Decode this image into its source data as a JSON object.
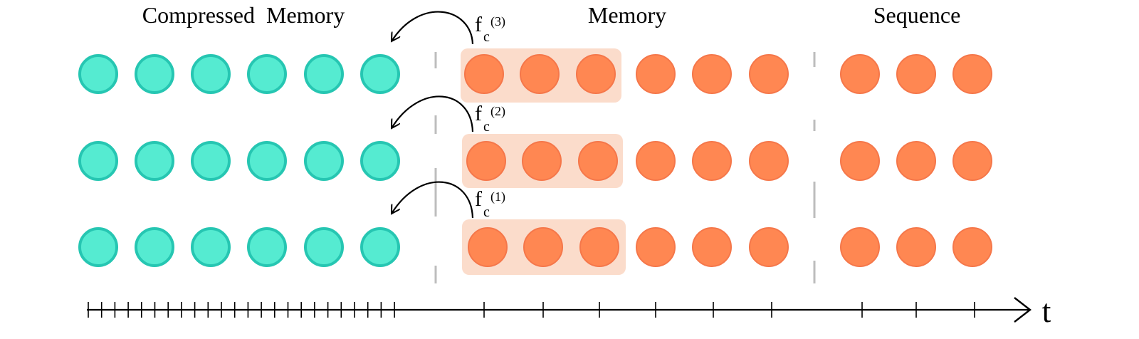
{
  "headers": {
    "compressed_memory": "Compressed  Memory",
    "memory": "Memory",
    "sequence": "Sequence"
  },
  "rows": [
    {
      "compression_label": {
        "base": "f",
        "sub": "c",
        "sup": "(3)"
      }
    },
    {
      "compression_label": {
        "base": "f",
        "sub": "c",
        "sup": "(2)"
      }
    },
    {
      "compression_label": {
        "base": "f",
        "sub": "c",
        "sup": "(1)"
      }
    }
  ],
  "counts": {
    "compressed_slots": 6,
    "memory_slots": 6,
    "compressed_group": 3,
    "sequence_slots": 3
  },
  "axis": {
    "label": "t"
  },
  "colors": {
    "compressed_fill": "#55ebd1",
    "compressed_stroke": "#26c6b2",
    "memory_fill": "#ff8752",
    "memory_stroke": "#f5774a",
    "highlight_box": "#fbdccb",
    "divider": "#bdbdbd",
    "ink": "#000000"
  }
}
